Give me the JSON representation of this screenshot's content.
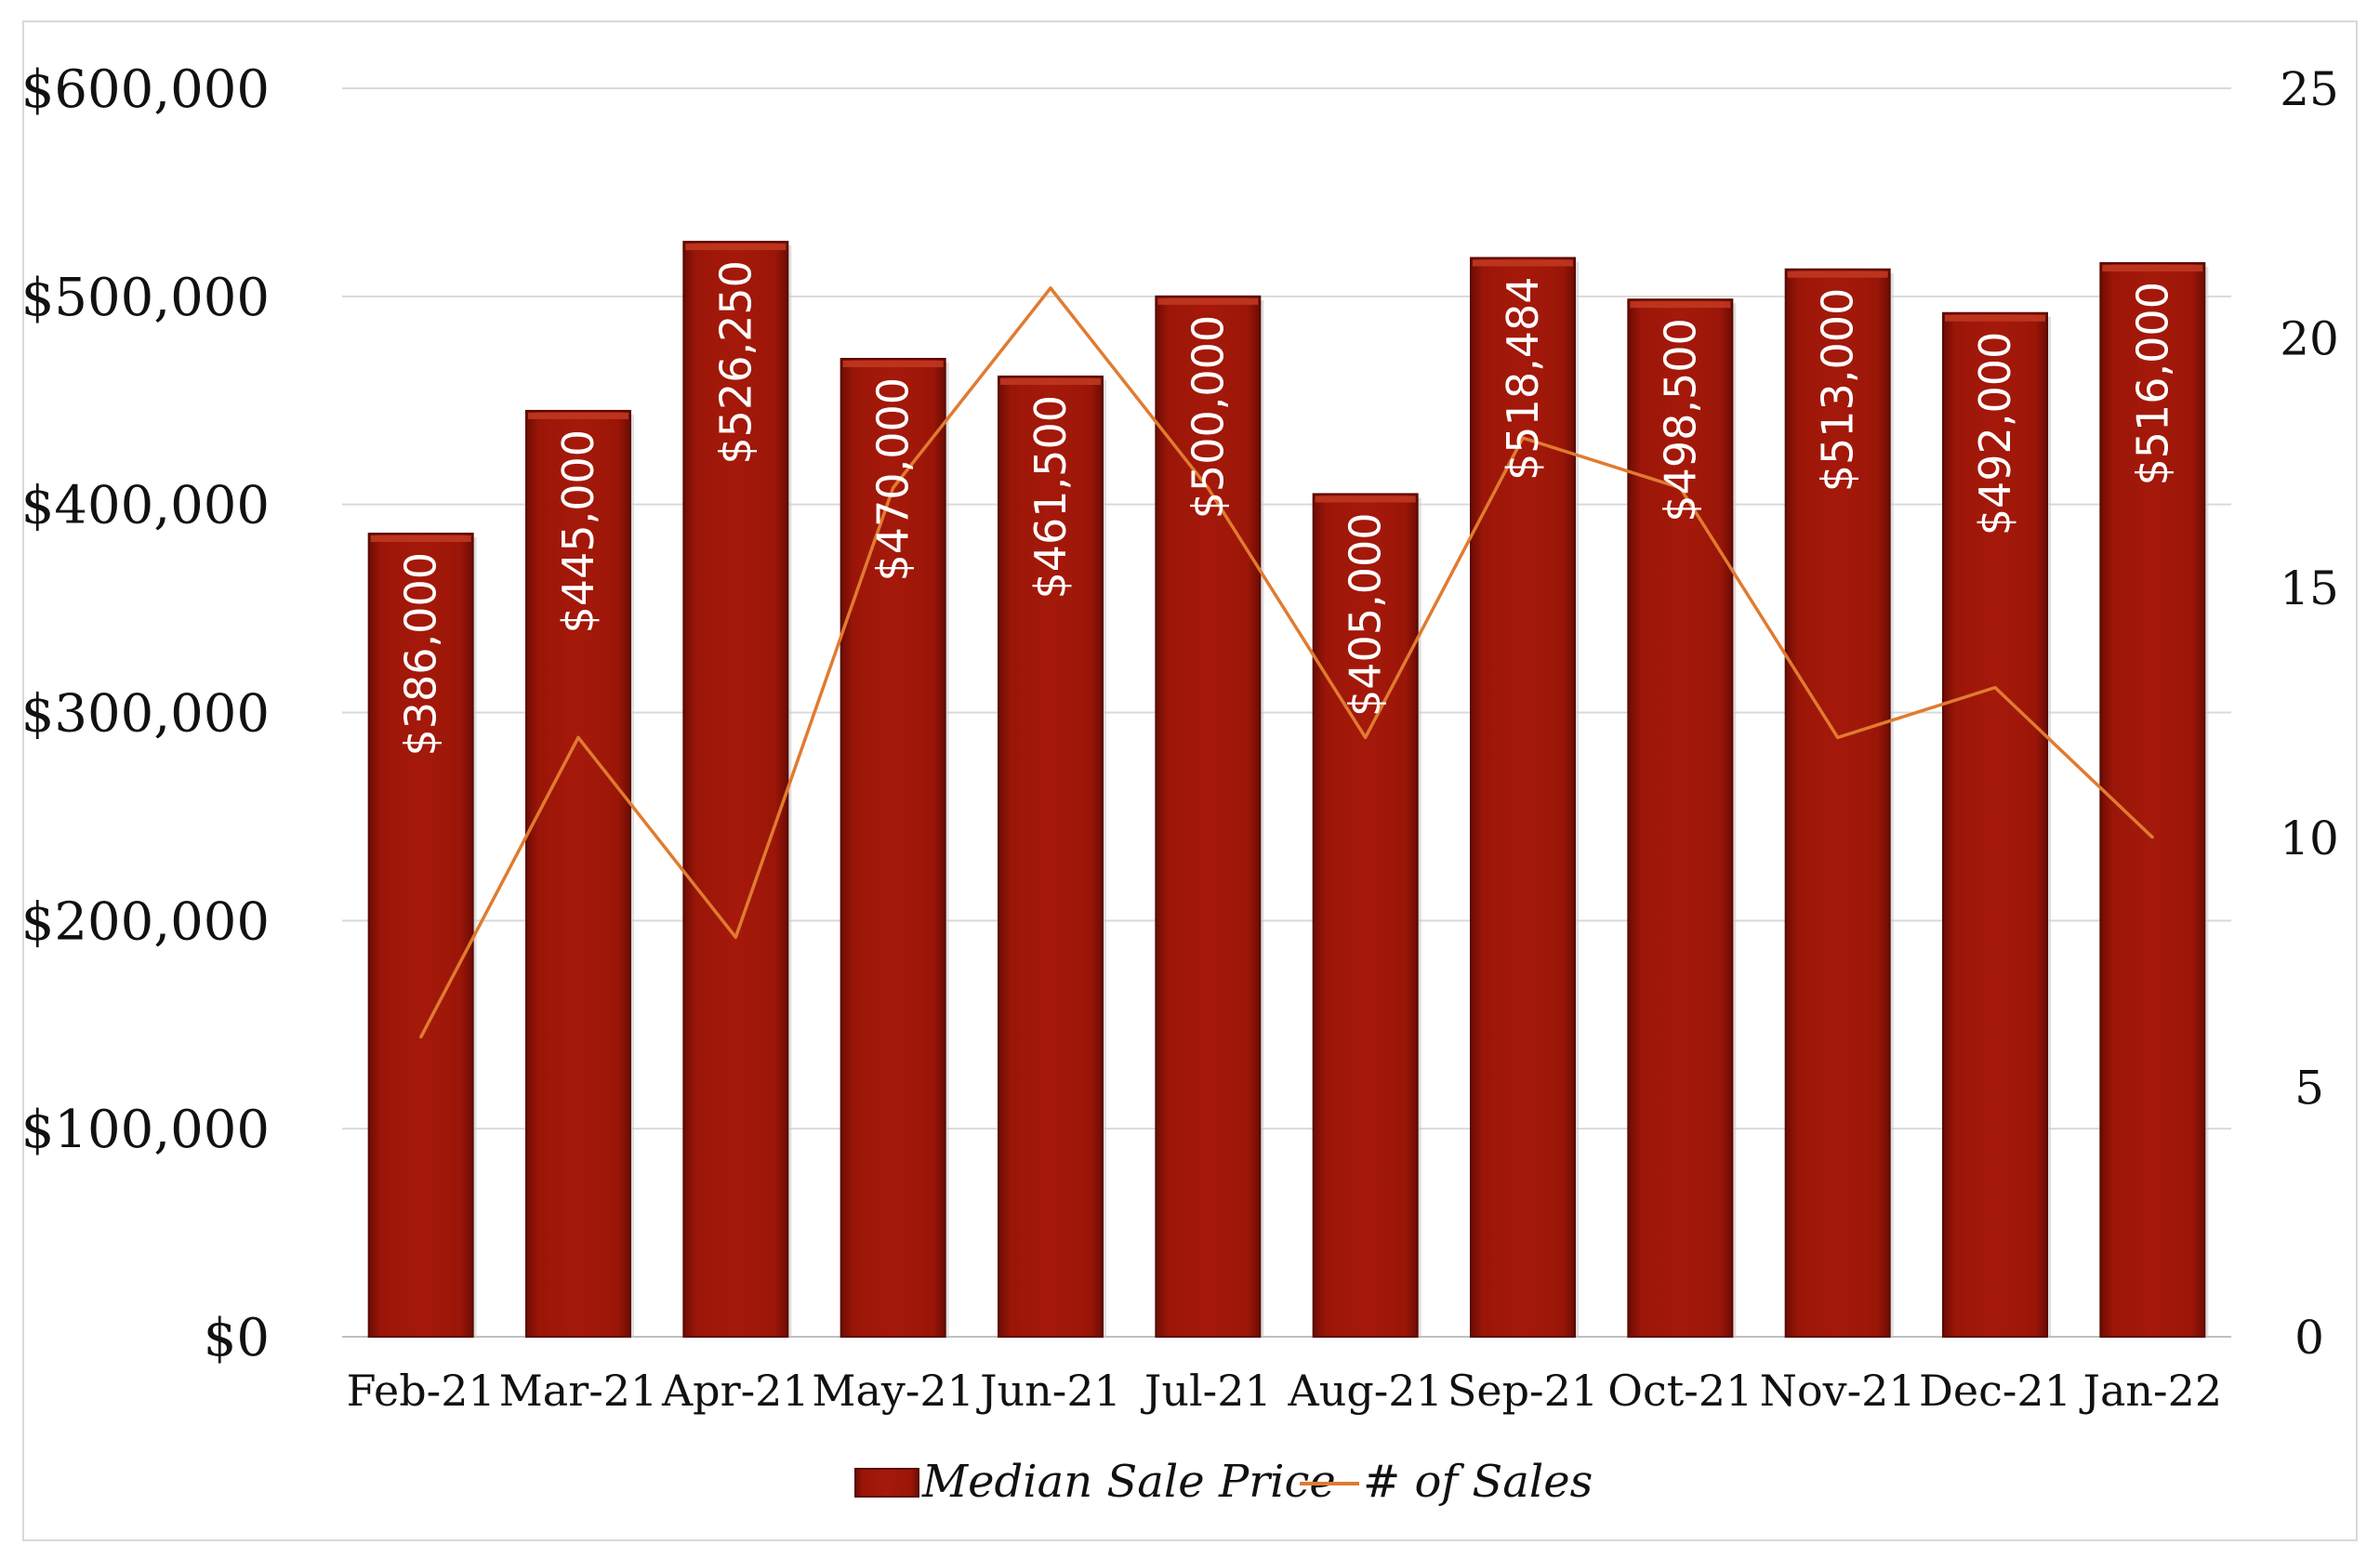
{
  "chart_data": {
    "type": "bar",
    "categories": [
      "Feb-21",
      "Mar-21",
      "Apr-21",
      "May-21",
      "Jun-21",
      "Jul-21",
      "Aug-21",
      "Sep-21",
      "Oct-21",
      "Nov-21",
      "Dec-21",
      "Jan-22"
    ],
    "series": [
      {
        "name": "Median Sale Price",
        "type": "bar",
        "axis": "left",
        "values": [
          386000,
          445000,
          526250,
          470000,
          461500,
          500000,
          405000,
          518484,
          498500,
          513000,
          492000,
          516000
        ],
        "data_labels": [
          "$386,000",
          "$445,000",
          "$526,250",
          "$470,000",
          "$461,500",
          "$500,000",
          "$405,000",
          "$518,484",
          "$498,500",
          "$513,000",
          "$492,000",
          "$516,000"
        ],
        "color": "#9b1608"
      },
      {
        "name": "# of Sales",
        "type": "line",
        "axis": "right",
        "values": [
          6,
          12,
          8,
          17,
          21,
          17,
          12,
          18,
          17,
          12,
          13,
          10
        ],
        "color": "#e07b30"
      }
    ],
    "y_left": {
      "ylim": [
        0,
        600000
      ],
      "ticks": [
        0,
        100000,
        200000,
        300000,
        400000,
        500000,
        600000
      ],
      "tick_labels": [
        "$0",
        "$100,000",
        "$200,000",
        "$300,000",
        "$400,000",
        "$500,000",
        "$600,000"
      ]
    },
    "y_right": {
      "ylim": [
        0,
        25
      ],
      "ticks": [
        0,
        5,
        10,
        15,
        20,
        25
      ],
      "tick_labels": [
        "0",
        "5",
        "10",
        "15",
        "20",
        "25"
      ]
    },
    "grid": true,
    "legend_position": "bottom"
  },
  "legend": {
    "items": [
      "Median Sale Price",
      "# of Sales"
    ]
  }
}
